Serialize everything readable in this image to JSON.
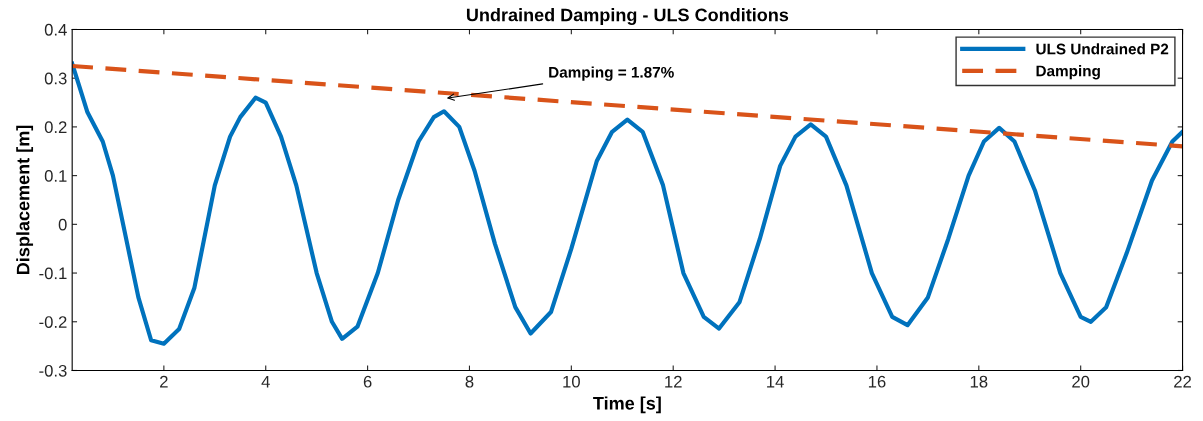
{
  "chart_data": {
    "type": "line",
    "title": "Undrained Damping - ULS Conditions",
    "xlabel": "Time [s]",
    "ylabel": "Displacement [m]",
    "xlim": [
      0.2,
      22
    ],
    "xticks": [
      2,
      4,
      6,
      8,
      10,
      12,
      14,
      16,
      18,
      20,
      22
    ],
    "ylim": [
      -0.3,
      0.4
    ],
    "yticks": [
      -0.3,
      -0.2,
      -0.1,
      0,
      0.1,
      0.2,
      0.3,
      0.4
    ],
    "grid": false,
    "legend": "top right",
    "series": [
      {
        "name": "ULS Undrained P2",
        "color": "#0072bd",
        "line_style": "solid",
        "x": [
          0.2,
          0.35,
          0.5,
          0.8,
          1.0,
          1.3,
          1.5,
          1.75,
          2.0,
          2.3,
          2.6,
          3.0,
          3.3,
          3.5,
          3.8,
          4.0,
          4.3,
          4.6,
          5.0,
          5.3,
          5.5,
          5.8,
          6.2,
          6.6,
          7.0,
          7.3,
          7.5,
          7.8,
          8.1,
          8.5,
          8.9,
          9.2,
          9.6,
          10.0,
          10.5,
          10.8,
          11.1,
          11.4,
          11.8,
          12.2,
          12.6,
          12.9,
          13.3,
          13.7,
          14.1,
          14.4,
          14.7,
          15.0,
          15.4,
          15.9,
          16.3,
          16.6,
          17.0,
          17.4,
          17.8,
          18.1,
          18.4,
          18.7,
          19.1,
          19.6,
          20.0,
          20.2,
          20.5,
          20.9,
          21.4,
          21.8,
          22.0
        ],
        "values": [
          0.33,
          0.28,
          0.23,
          0.17,
          0.1,
          -0.05,
          -0.15,
          -0.238,
          -0.245,
          -0.215,
          -0.13,
          0.08,
          0.18,
          0.22,
          0.26,
          0.25,
          0.18,
          0.08,
          -0.1,
          -0.2,
          -0.235,
          -0.21,
          -0.1,
          0.05,
          0.17,
          0.22,
          0.232,
          0.2,
          0.11,
          -0.04,
          -0.17,
          -0.224,
          -0.18,
          -0.05,
          0.13,
          0.19,
          0.215,
          0.19,
          0.08,
          -0.1,
          -0.19,
          -0.214,
          -0.16,
          -0.03,
          0.12,
          0.18,
          0.205,
          0.18,
          0.08,
          -0.1,
          -0.19,
          -0.207,
          -0.15,
          -0.03,
          0.1,
          0.17,
          0.198,
          0.17,
          0.07,
          -0.1,
          -0.19,
          -0.2,
          -0.17,
          -0.06,
          0.09,
          0.17,
          0.19
        ]
      },
      {
        "name": "Damping",
        "color": "#d95319",
        "line_style": "dashed",
        "x": [
          0.2,
          22
        ],
        "values": [
          0.325,
          0.16
        ]
      }
    ],
    "annotations": [
      {
        "text": "Damping = 1.87%",
        "x": 7.5,
        "y": 0.258
      }
    ]
  }
}
